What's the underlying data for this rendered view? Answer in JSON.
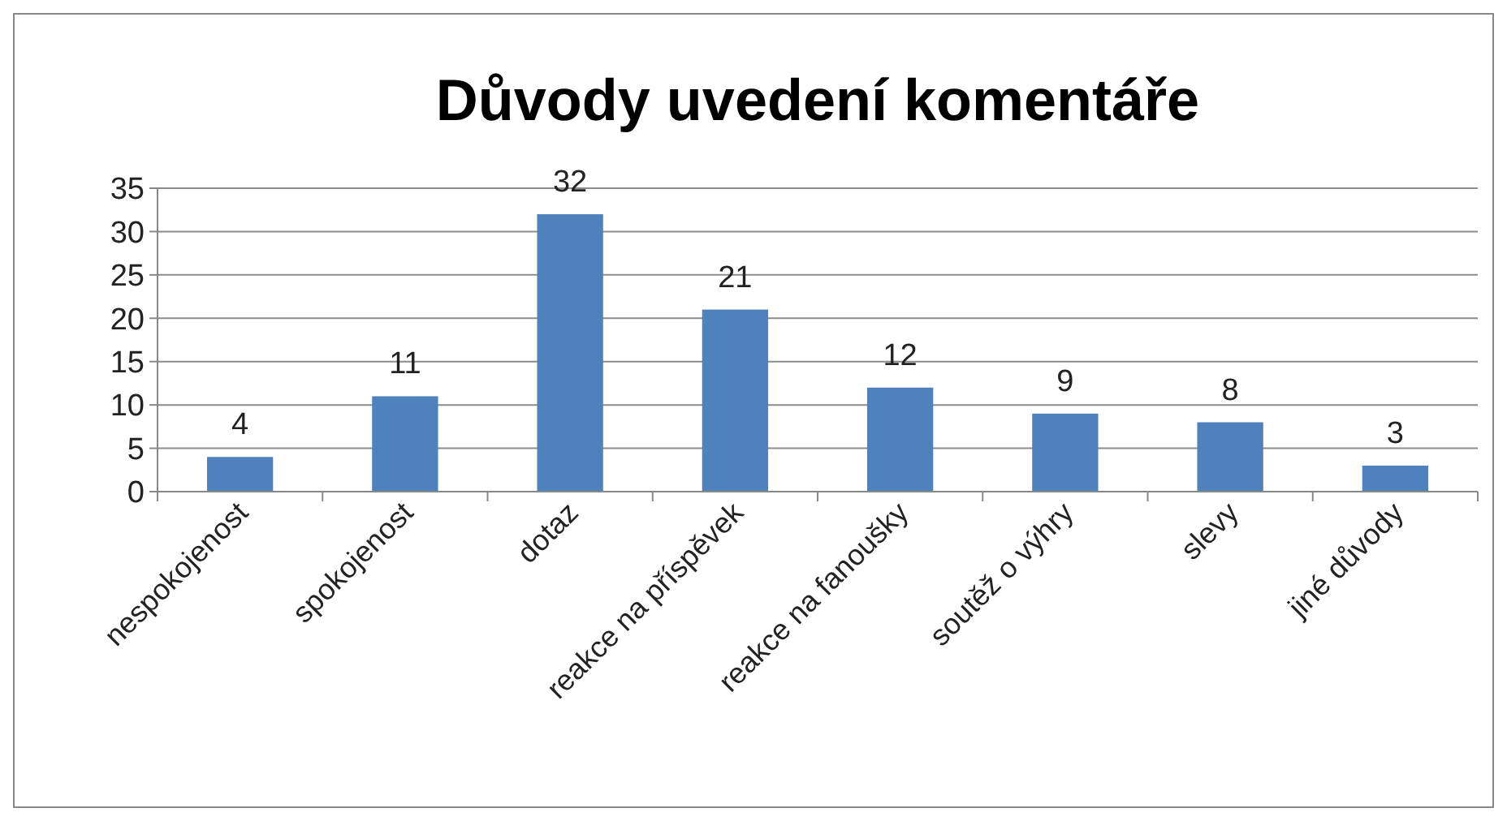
{
  "chart_data": {
    "type": "bar",
    "title": "Důvody uvedení komentáře",
    "categories": [
      "nespokojenost",
      "spokojenost",
      "dotaz",
      "reakce na příspěvek",
      "reakce na fanoušky",
      "soutěž o výhry",
      "slevy",
      "jiné důvody"
    ],
    "values": [
      4,
      11,
      32,
      21,
      12,
      9,
      8,
      3
    ],
    "color": "#4f81bd",
    "ylim": [
      0,
      35
    ],
    "yticks": [
      0,
      5,
      10,
      15,
      20,
      25,
      30,
      35
    ],
    "grid": "y",
    "data_labels": true
  }
}
